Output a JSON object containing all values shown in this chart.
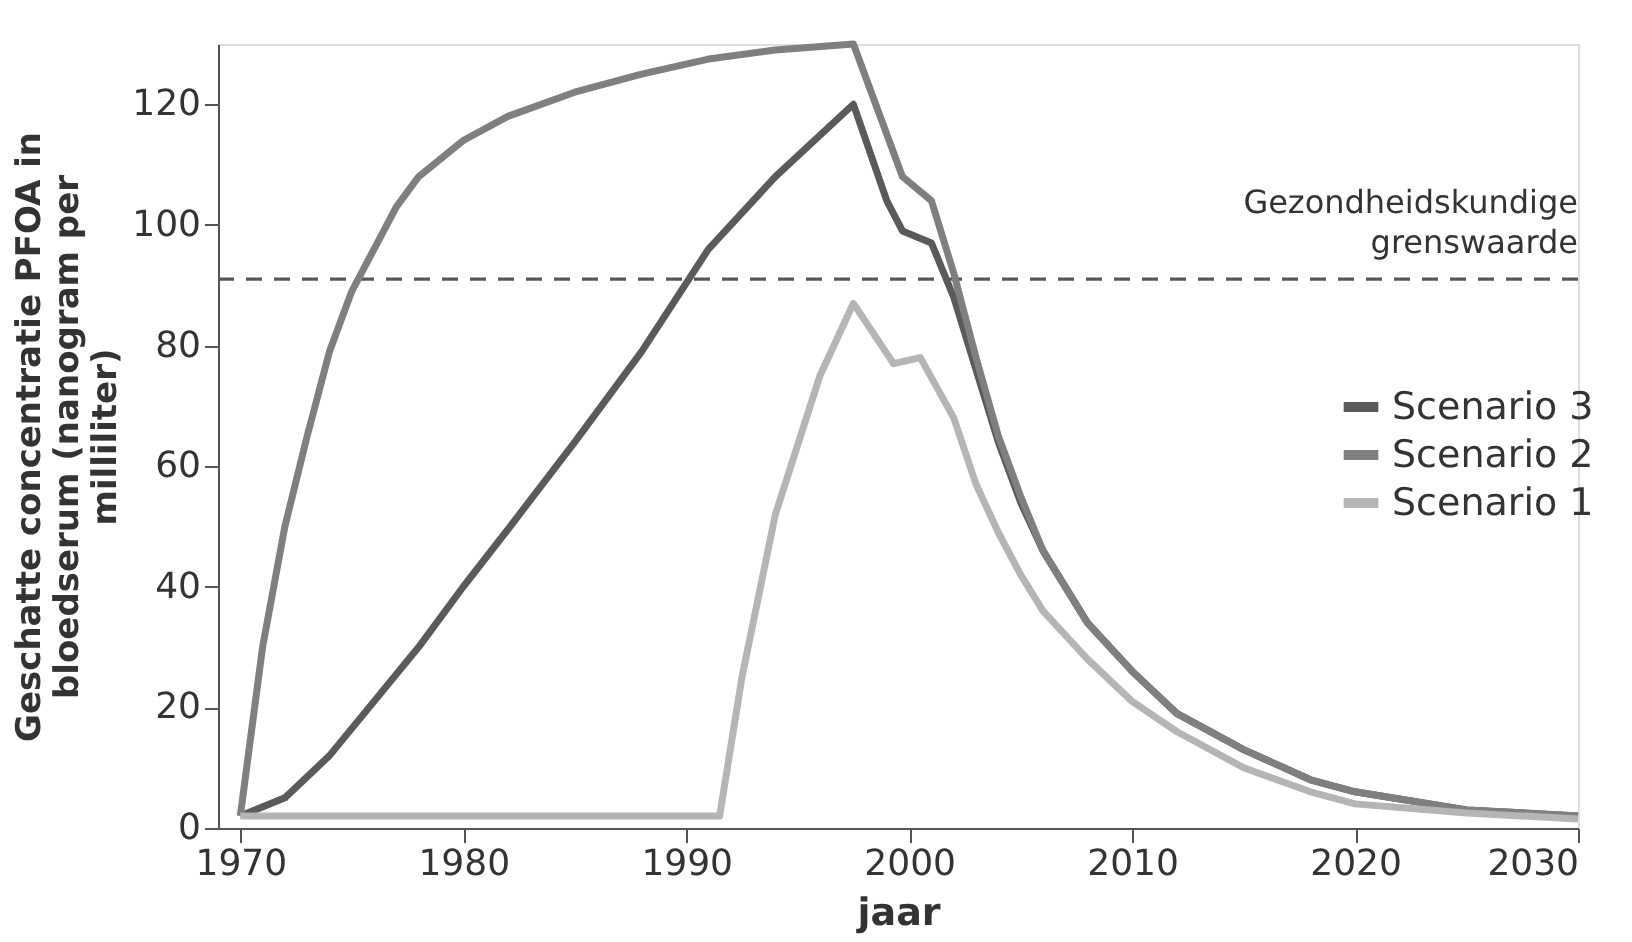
{
  "chart_data": {
    "type": "line",
    "xlabel": "jaar",
    "ylabel": "Geschatte concentratie PFOA in bloedserum (nanogram per milliliter)",
    "xlim": [
      1969,
      2030
    ],
    "xticks": [
      1970,
      1980,
      1990,
      2000,
      2010,
      2020,
      2030
    ],
    "ylim": [
      0,
      130
    ],
    "yticks": [
      0,
      20,
      40,
      60,
      80,
      100,
      120
    ],
    "grid": false,
    "legend": "right",
    "line_style": "solid",
    "marker": "none",
    "ref_lines": [
      {
        "axis": "y",
        "value": 91,
        "label": "Gezondheidskundige grenswaarde",
        "color": "#555555",
        "line_style": "dashed"
      }
    ],
    "series": [
      {
        "name": "Scenario 3",
        "color": "#5a5a5a",
        "x": [
          1970,
          1972,
          1974,
          1976,
          1978,
          1980,
          1982,
          1985,
          1988,
          1991,
          1994,
          1997.5,
          1999,
          1999.7,
          2001,
          2002,
          2003,
          2004,
          2005,
          2006,
          2008,
          2010,
          2012,
          2015,
          2018,
          2020,
          2025,
          2030
        ],
        "values": [
          2,
          5,
          12,
          21,
          30,
          40,
          49.5,
          64,
          79,
          96,
          108,
          120,
          104,
          99,
          97,
          88,
          76,
          64,
          54,
          46,
          34,
          26,
          19,
          13,
          8,
          6,
          3,
          2
        ]
      },
      {
        "name": "Scenario 2",
        "color": "#7f7f7f",
        "x": [
          1970,
          1971,
          1972,
          1973,
          1974,
          1975,
          1976,
          1977,
          1978,
          1980,
          1982,
          1985,
          1988,
          1991,
          1994,
          1997.5,
          1999,
          1999.7,
          2001,
          2002,
          2003,
          2004,
          2005,
          2006,
          2008,
          2010,
          2012,
          2015,
          2018,
          2020,
          2025,
          2030
        ],
        "values": [
          2,
          30,
          50,
          65,
          79,
          89,
          96,
          103,
          108,
          114,
          118,
          122,
          125,
          127.5,
          129,
          130,
          115,
          108,
          104,
          92,
          78,
          65,
          55,
          46,
          34,
          26,
          19,
          13,
          8,
          6,
          3,
          2
        ]
      },
      {
        "name": "Scenario 1",
        "color": "#b5b5b5",
        "x": [
          1970,
          1991.5,
          1992.5,
          1994,
          1996,
          1997.5,
          1999.3,
          2000.5,
          2002,
          2003,
          2004,
          2005,
          2006,
          2008,
          2010,
          2012,
          2015,
          2018,
          2020,
          2025,
          2030
        ],
        "values": [
          2,
          2,
          25,
          52,
          75,
          87,
          77,
          78,
          68,
          57,
          49,
          42,
          36,
          28,
          21,
          16,
          10,
          6,
          4,
          2.5,
          1.5
        ]
      }
    ]
  }
}
